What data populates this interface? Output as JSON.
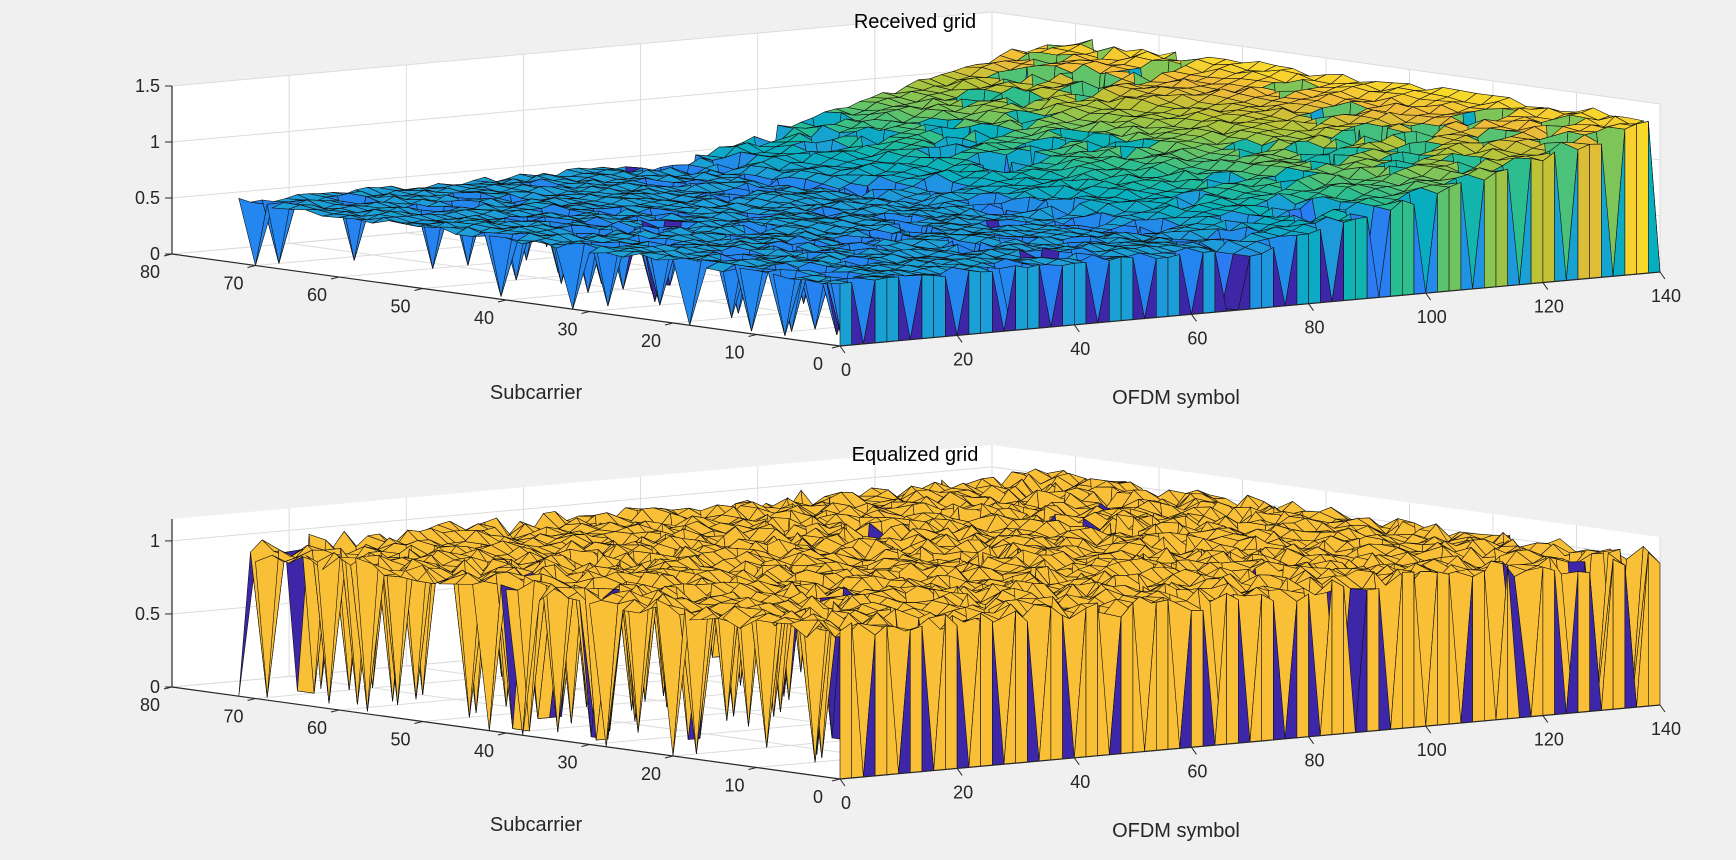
{
  "figure": {
    "background": "#f0f0f0"
  },
  "chart_data": [
    {
      "type": "surface",
      "title": "Received grid",
      "xlabel": "OFDM symbol",
      "ylabel": "Subcarrier",
      "zlabel": "",
      "xlim": [
        0,
        140
      ],
      "ylim": [
        0,
        80
      ],
      "zlim": [
        0,
        1.5
      ],
      "xticks": [
        "0",
        "20",
        "40",
        "60",
        "80",
        "100",
        "120",
        "140"
      ],
      "yticks": [
        "0",
        "10",
        "20",
        "30",
        "40",
        "50",
        "60",
        "70",
        "80"
      ],
      "zticks": [
        "0",
        "0.5",
        "1",
        "1.5"
      ],
      "grid": true,
      "colormap": "parula",
      "grid_size": {
        "subcarriers": 72,
        "symbols": 140
      },
      "description_of_values": {
        "symbols_0_to_69_level": 0.55,
        "symbols_70_to_140_level_start": 0.5,
        "symbols_70_to_140_level_end": 1.35,
        "null_value": 0
      }
    },
    {
      "type": "surface",
      "title": "Equalized grid",
      "xlabel": "OFDM symbol",
      "ylabel": "Subcarrier",
      "zlabel": "",
      "xlim": [
        0,
        140
      ],
      "ylim": [
        0,
        80
      ],
      "zlim": [
        0,
        1.15
      ],
      "xticks": [
        "0",
        "20",
        "40",
        "60",
        "80",
        "100",
        "120",
        "140"
      ],
      "yticks": [
        "0",
        "10",
        "20",
        "30",
        "40",
        "50",
        "60",
        "70",
        "80"
      ],
      "zticks": [
        "0",
        "0.5",
        "1"
      ],
      "grid": true,
      "colormap": "parula",
      "grid_size": {
        "subcarriers": 72,
        "symbols": 140
      },
      "description_of_values": {
        "level": 1.0,
        "null_value": 0
      }
    }
  ],
  "colors": {
    "colormap_stops": [
      "#3e26a8",
      "#4743d3",
      "#3d66f9",
      "#2485f0",
      "#1d9ed8",
      "#06b0bd",
      "#2dbe8e",
      "#76c55c",
      "#b7c437",
      "#f0ba39",
      "#fadc2a",
      "#f9fb15"
    ],
    "null_color": "#3e26a8",
    "equalized_color": "#f9bf37"
  }
}
